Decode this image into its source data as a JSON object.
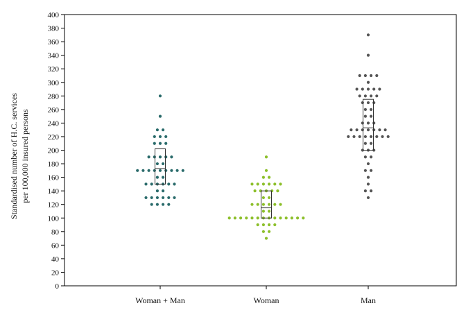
{
  "chart_data": {
    "type": "scatter",
    "subtype": "dot-plot with median and interquartile box",
    "ylabel_line1": "Standardised number of H.C. services",
    "ylabel_line2": "per 100,000 insured persons",
    "ylim": [
      0,
      400
    ],
    "yticks": [
      0,
      20,
      40,
      60,
      80,
      100,
      120,
      140,
      160,
      180,
      200,
      220,
      240,
      260,
      280,
      300,
      320,
      340,
      360,
      380,
      400
    ],
    "grid": false,
    "categories": [
      "Woman + Man",
      "Woman",
      "Man"
    ],
    "series": [
      {
        "color": "#2a6b6b",
        "box": {
          "q1": 150,
          "median": 173,
          "q3": 202
        },
        "points": [
          {
            "y": 280,
            "n": 1
          },
          {
            "y": 250,
            "n": 1
          },
          {
            "y": 230,
            "n": 2
          },
          {
            "y": 220,
            "n": 3
          },
          {
            "y": 210,
            "n": 3
          },
          {
            "y": 190,
            "n": 5
          },
          {
            "y": 180,
            "n": 2
          },
          {
            "y": 170,
            "n": 9
          },
          {
            "y": 160,
            "n": 2
          },
          {
            "y": 150,
            "n": 6
          },
          {
            "y": 140,
            "n": 2
          },
          {
            "y": 130,
            "n": 6
          },
          {
            "y": 120,
            "n": 4
          }
        ]
      },
      {
        "color": "#8cbf2a",
        "box": {
          "q1": 100,
          "median": 115,
          "q3": 140
        },
        "points": [
          {
            "y": 190,
            "n": 1
          },
          {
            "y": 170,
            "n": 1
          },
          {
            "y": 160,
            "n": 2
          },
          {
            "y": 150,
            "n": 6
          },
          {
            "y": 140,
            "n": 5
          },
          {
            "y": 130,
            "n": 2
          },
          {
            "y": 120,
            "n": 6
          },
          {
            "y": 110,
            "n": 2
          },
          {
            "y": 100,
            "n": 14
          },
          {
            "y": 90,
            "n": 4
          },
          {
            "y": 80,
            "n": 2
          },
          {
            "y": 70,
            "n": 1
          }
        ]
      },
      {
        "color": "#555555",
        "box": {
          "q1": 200,
          "median": 233,
          "q3": 275
        },
        "points": [
          {
            "y": 370,
            "n": 1
          },
          {
            "y": 340,
            "n": 1
          },
          {
            "y": 310,
            "n": 4
          },
          {
            "y": 300,
            "n": 1
          },
          {
            "y": 290,
            "n": 5
          },
          {
            "y": 280,
            "n": 4
          },
          {
            "y": 270,
            "n": 3
          },
          {
            "y": 260,
            "n": 2
          },
          {
            "y": 250,
            "n": 2
          },
          {
            "y": 240,
            "n": 3
          },
          {
            "y": 230,
            "n": 7
          },
          {
            "y": 220,
            "n": 8
          },
          {
            "y": 210,
            "n": 2
          },
          {
            "y": 200,
            "n": 3
          },
          {
            "y": 190,
            "n": 2
          },
          {
            "y": 180,
            "n": 1
          },
          {
            "y": 170,
            "n": 2
          },
          {
            "y": 160,
            "n": 1
          },
          {
            "y": 150,
            "n": 1
          },
          {
            "y": 140,
            "n": 2
          },
          {
            "y": 130,
            "n": 1
          }
        ]
      }
    ]
  }
}
